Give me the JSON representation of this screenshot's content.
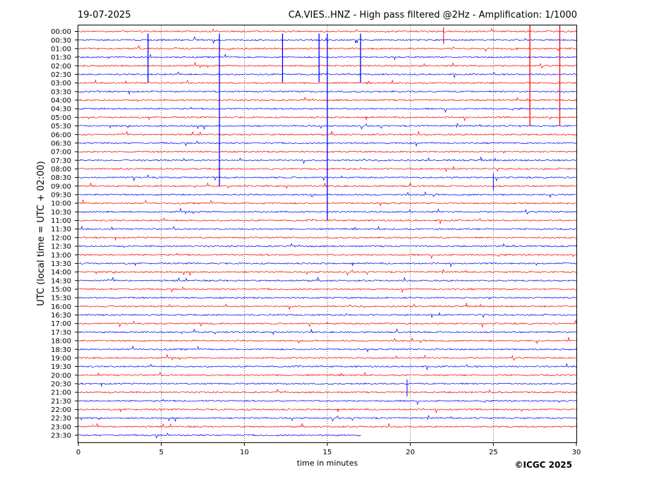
{
  "header": {
    "date": "19-07-2025",
    "title": "CA.VIES..HNZ - High pass filtered @2Hz - Amplification: 1/1000"
  },
  "footer": {
    "copyright": "©ICGC 2025"
  },
  "colors": {
    "odd_rows": "#ff0000",
    "even_rows": "#0000ff",
    "grid": "#000000"
  },
  "chart_data": {
    "type": "line",
    "subtype": "helicorder",
    "xlabel": "time in minutes",
    "ylabel": "UTC (local time = UTC + 02:00)",
    "xlim": [
      0,
      30
    ],
    "x_ticks": [
      "0",
      "5",
      "10",
      "15",
      "20",
      "25",
      "30"
    ],
    "x_tick_values": [
      0,
      5,
      10,
      15,
      20,
      25,
      30
    ],
    "grid": "vertical dotted lines every 5 minutes",
    "rows": [
      "00:00",
      "00:30",
      "01:00",
      "01:30",
      "02:00",
      "02:30",
      "03:00",
      "03:30",
      "04:00",
      "04:30",
      "05:00",
      "05:30",
      "06:00",
      "06:30",
      "07:00",
      "07:30",
      "08:00",
      "08:30",
      "09:00",
      "09:30",
      "10:00",
      "10:30",
      "11:00",
      "11:30",
      "12:00",
      "12:30",
      "13:00",
      "13:30",
      "14:00",
      "14:30",
      "15:00",
      "15:30",
      "16:00",
      "16:30",
      "17:00",
      "17:30",
      "18:00",
      "18:30",
      "19:00",
      "19:30",
      "20:00",
      "20:30",
      "21:00",
      "21:30",
      "22:00",
      "22:30",
      "23:00",
      "23:30"
    ],
    "row_colors": "alternating red (00:00) / blue (00:30)",
    "data_end_minute_last_row": 17,
    "notable_events": [
      {
        "row": "00:00",
        "minute": 22.0,
        "amplitude": "medium"
      },
      {
        "row": "00:00",
        "minute": 27.2,
        "amplitude": "large, spans to 05:30"
      },
      {
        "row": "00:00",
        "minute": 29.0,
        "amplitude": "large, spans to 05:30"
      },
      {
        "row": "00:30",
        "minute": 4.2,
        "amplitude": "large"
      },
      {
        "row": "00:30",
        "minute": 8.5,
        "amplitude": "large, spans to 09:00"
      },
      {
        "row": "00:30",
        "minute": 12.3,
        "amplitude": "large"
      },
      {
        "row": "00:30",
        "minute": 14.5,
        "amplitude": "large"
      },
      {
        "row": "00:30",
        "minute": 15.0,
        "amplitude": "large, spans to 11:00"
      },
      {
        "row": "00:30",
        "minute": 17.0,
        "amplitude": "large"
      },
      {
        "row": "08:30",
        "minute": 25.0,
        "amplitude": "medium"
      },
      {
        "row": "20:30",
        "minute": 19.8,
        "amplitude": "medium"
      }
    ]
  }
}
